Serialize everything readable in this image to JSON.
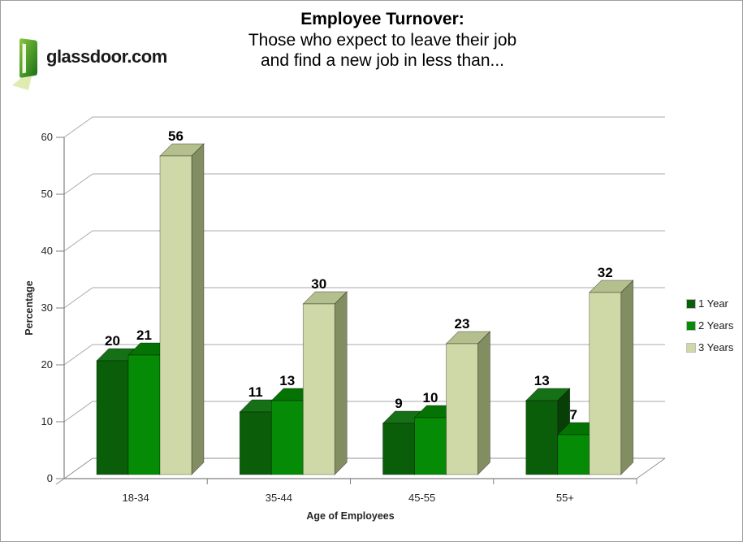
{
  "page": {
    "background": "#ffffff",
    "border_color": "#9e9e9e"
  },
  "logo": {
    "text": "glassdoor.com",
    "door_color_light": "#8CC63F",
    "door_color_dark": "#1E7A1E",
    "beam_color": "#DDE9A8"
  },
  "title": {
    "line1": "Employee Turnover:",
    "line2": "Those who expect to leave their job",
    "line3": "and find a new job in less than..."
  },
  "chart_data": {
    "type": "bar",
    "style": "3d-clustered",
    "title": "Employee Turnover: Those who expect to leave their job and find a new job in less than...",
    "categories": [
      "18-34",
      "35-44",
      "45-55",
      "55+"
    ],
    "series": [
      {
        "name": "1 Year",
        "values": [
          20,
          11,
          9,
          13
        ],
        "color": "#0A5E0A",
        "color_top": "#167116",
        "color_side": "#073F07"
      },
      {
        "name": "2 Years",
        "values": [
          21,
          13,
          10,
          7
        ],
        "color": "#058B05",
        "color_top": "#047304",
        "color_side": "#045A04"
      },
      {
        "name": "3 Years",
        "values": [
          56,
          30,
          23,
          32
        ],
        "color": "#CFD9A8",
        "color_top": "#B4BF8E",
        "color_side": "#828E62"
      }
    ],
    "xlabel": "Age of Employees",
    "ylabel": "Percentage",
    "ylim": [
      0,
      60
    ],
    "ytick_step": 10,
    "yticks": [
      0,
      10,
      20,
      30,
      40,
      50,
      60
    ],
    "grid": true,
    "data_labels": true,
    "legend_position": "right",
    "colors": {
      "grid": "#A8A8A8",
      "axis": "#808080",
      "tick_label": "#262626",
      "bar_label": "#000000",
      "bar_outline": "rgba(0,0,0,0.45)"
    }
  }
}
